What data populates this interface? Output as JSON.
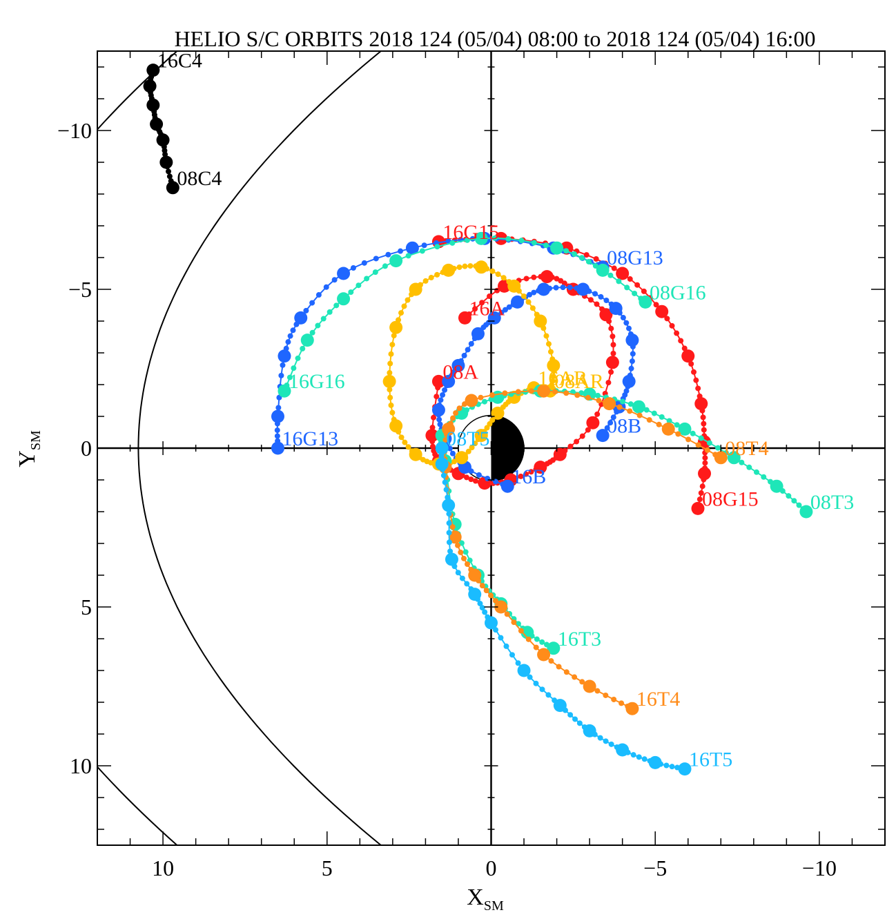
{
  "chart_data": {
    "type": "line",
    "title": "HELIO S/C ORBITS 2018 124 (05/04) 08:00 to 2018 124 (05/04) 16:00",
    "xlabel": "X",
    "xlabel_sub": "SM",
    "ylabel": "Y",
    "ylabel_sub": "SM",
    "xlim": [
      12,
      -12
    ],
    "ylim": [
      -12.5,
      12.5
    ],
    "x_ticks": [
      10,
      5,
      0,
      -5,
      -10
    ],
    "x_tick_labels": [
      "10",
      "5",
      "0",
      "−5",
      "−10"
    ],
    "y_ticks": [
      -10,
      -5,
      0,
      5,
      10
    ],
    "y_tick_labels": [
      "−10",
      "−5",
      "0",
      "5",
      "10"
    ],
    "grid": false,
    "series": [
      {
        "color": "#000000",
        "start_label": "08C4",
        "end_label": "16C4",
        "points": [
          [
            9.7,
            -8.2
          ],
          [
            9.9,
            -9.0
          ],
          [
            10.0,
            -9.7
          ],
          [
            10.2,
            -10.2
          ],
          [
            10.3,
            -10.8
          ],
          [
            10.4,
            -11.4
          ],
          [
            10.3,
            -11.9
          ]
        ]
      },
      {
        "color": "#ff1a1a",
        "start_label": "08G15",
        "end_label": "16G15",
        "points": [
          [
            -6.3,
            1.9
          ],
          [
            -6.5,
            0.8
          ],
          [
            -6.5,
            -0.2
          ],
          [
            -6.4,
            -1.4
          ],
          [
            -6.0,
            -2.9
          ],
          [
            -5.2,
            -4.3
          ],
          [
            -4.0,
            -5.5
          ],
          [
            -2.3,
            -6.3
          ],
          [
            -0.3,
            -6.6
          ],
          [
            1.6,
            -6.5
          ]
        ]
      },
      {
        "color": "#1f66ff",
        "start_label": "08G13",
        "end_label": "16G13",
        "points": [
          [
            -3.4,
            -5.7
          ],
          [
            -1.9,
            -6.3
          ],
          [
            0.2,
            -6.6
          ],
          [
            2.4,
            -6.3
          ],
          [
            4.5,
            -5.5
          ],
          [
            5.8,
            -4.1
          ],
          [
            6.3,
            -2.9
          ],
          [
            6.5,
            -1.0
          ],
          [
            6.5,
            0.0
          ]
        ]
      },
      {
        "color": "#1ee6b8",
        "start_label": "08G16",
        "end_label": "16G16",
        "points": [
          [
            -4.7,
            -4.6
          ],
          [
            -3.4,
            -5.6
          ],
          [
            -2.0,
            -6.3
          ],
          [
            0.3,
            -6.6
          ],
          [
            2.9,
            -5.9
          ],
          [
            4.5,
            -4.7
          ],
          [
            5.6,
            -3.4
          ],
          [
            6.3,
            -1.8
          ]
        ]
      },
      {
        "color": "#ff1a1a",
        "start_label": "08A",
        "end_label": "16A",
        "points": [
          [
            1.6,
            -2.1
          ],
          [
            1.8,
            -0.4
          ],
          [
            1.6,
            0.4
          ],
          [
            1.0,
            0.8
          ],
          [
            0.2,
            1.1
          ],
          [
            -0.6,
            1.0
          ],
          [
            -1.5,
            0.6
          ],
          [
            -2.1,
            0.2
          ],
          [
            -3.1,
            -0.8
          ],
          [
            -3.7,
            -2.7
          ],
          [
            -3.5,
            -4.2
          ],
          [
            -2.5,
            -5.0
          ],
          [
            -1.7,
            -5.4
          ],
          [
            -0.4,
            -5.1
          ],
          [
            0.8,
            -4.1
          ]
        ]
      },
      {
        "color": "#1f66ff",
        "start_label": "08B",
        "end_label": "16B",
        "points": [
          [
            -3.4,
            -0.4
          ],
          [
            -3.9,
            -1.3
          ],
          [
            -4.2,
            -2.1
          ],
          [
            -4.3,
            -3.4
          ],
          [
            -3.8,
            -4.4
          ],
          [
            -2.8,
            -5.0
          ],
          [
            -1.6,
            -5.0
          ],
          [
            -0.8,
            -4.6
          ],
          [
            -0.1,
            -4.1
          ],
          [
            0.4,
            -3.6
          ],
          [
            1.0,
            -2.6
          ],
          [
            1.3,
            -2.1
          ],
          [
            1.6,
            -1.2
          ],
          [
            1.4,
            -0.3
          ],
          [
            0.8,
            0.6
          ],
          [
            -0.5,
            1.2
          ]
        ]
      },
      {
        "color": "#ffbf00",
        "start_label": "08AR",
        "end_label": "16AR",
        "points": [
          [
            -1.8,
            -1.8
          ],
          [
            -1.9,
            -2.6
          ],
          [
            -1.5,
            -4.0
          ],
          [
            -0.7,
            -5.1
          ],
          [
            0.3,
            -5.7
          ],
          [
            1.3,
            -5.6
          ],
          [
            2.3,
            -5.0
          ],
          [
            2.9,
            -3.8
          ],
          [
            3.1,
            -2.1
          ],
          [
            2.9,
            -0.7
          ],
          [
            2.3,
            0.2
          ],
          [
            1.6,
            0.5
          ],
          [
            0.9,
            0.3
          ],
          [
            0.3,
            -0.4
          ],
          [
            -0.2,
            -1.1
          ],
          [
            -0.7,
            -1.6
          ],
          [
            -1.3,
            -1.9
          ]
        ]
      },
      {
        "color": "#1ee6b8",
        "start_label": "08T3",
        "end_label": "16T3",
        "points": [
          [
            -9.6,
            2.0
          ],
          [
            -8.7,
            1.2
          ],
          [
            -7.4,
            0.3
          ],
          [
            -5.9,
            -0.6
          ],
          [
            -4.5,
            -1.3
          ],
          [
            -3.0,
            -1.7
          ],
          [
            -1.5,
            -1.8
          ],
          [
            -0.2,
            -1.6
          ],
          [
            0.9,
            -1.1
          ],
          [
            1.5,
            -0.4
          ],
          [
            1.4,
            0.4
          ],
          [
            1.1,
            2.4
          ],
          [
            0.4,
            4.0
          ],
          [
            -0.3,
            4.9
          ],
          [
            -1.1,
            5.8
          ],
          [
            -1.9,
            6.3
          ]
        ]
      },
      {
        "color": "#ff8c1a",
        "start_label": "08T4",
        "end_label": "16T4",
        "points": [
          [
            -7.0,
            0.3
          ],
          [
            -5.4,
            -0.6
          ],
          [
            -3.6,
            -1.4
          ],
          [
            -1.6,
            -1.8
          ],
          [
            0.6,
            -1.5
          ],
          [
            1.3,
            -0.6
          ],
          [
            1.4,
            0.6
          ],
          [
            1.1,
            2.8
          ],
          [
            0.5,
            4.0
          ],
          [
            -0.3,
            5.0
          ],
          [
            -1.6,
            6.5
          ],
          [
            -3.0,
            7.5
          ],
          [
            -4.3,
            8.2
          ]
        ]
      },
      {
        "color": "#1abcff",
        "start_label": "08T5",
        "end_label": "16T5",
        "points": [
          [
            1.5,
            0.0
          ],
          [
            1.5,
            0.5
          ],
          [
            1.3,
            1.8
          ],
          [
            1.2,
            3.5
          ],
          [
            0.5,
            4.6
          ],
          [
            0.0,
            5.5
          ],
          [
            -1.0,
            7.0
          ],
          [
            -2.1,
            8.1
          ],
          [
            -3.0,
            8.9
          ],
          [
            -4.0,
            9.5
          ],
          [
            -5.0,
            9.9
          ],
          [
            -5.9,
            10.1
          ]
        ]
      }
    ]
  }
}
